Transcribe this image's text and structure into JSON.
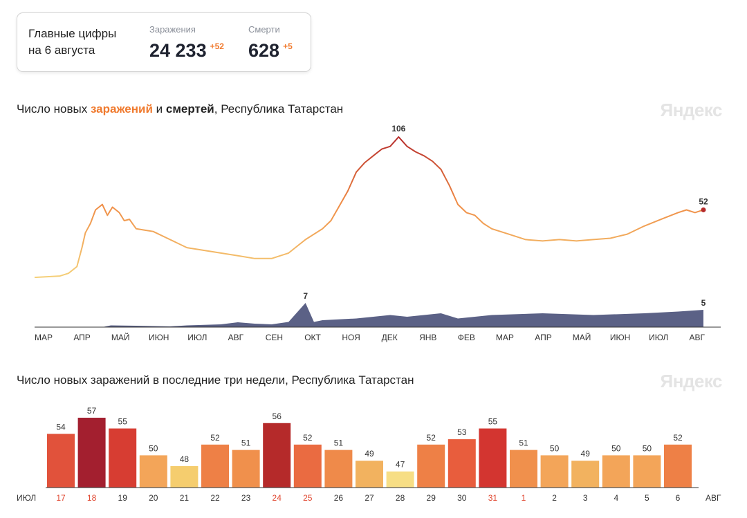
{
  "summary": {
    "title_line1": "Главные цифры",
    "title_line2": "на 6 августа",
    "infections": {
      "label": "Заражения",
      "value": "24 233",
      "delta": "+52"
    },
    "deaths": {
      "label": "Смерти",
      "value": "628",
      "delta": "+5"
    }
  },
  "brand": {
    "logo": "Яндекс"
  },
  "colors": {
    "infections_low": "#f5d27a",
    "infections_mid": "#ef8a44",
    "infections_high": "#b52a2a",
    "deaths": "#5b6186",
    "accent": "#f07a2e"
  },
  "chart_data": [
    {
      "type": "line",
      "title_parts": {
        "prefix": "Число новых ",
        "infections": "заражений",
        "middle": " и ",
        "deaths": "смертей",
        "suffix": ", Республика Татарстан"
      },
      "x_ticks": [
        "МАР",
        "АПР",
        "МАЙ",
        "ИЮН",
        "ИЮЛ",
        "АВГ",
        "СЕН",
        "ОКТ",
        "НОЯ",
        "ДЕК",
        "ЯНВ",
        "ФЕВ",
        "МАР",
        "АПР",
        "МАЙ",
        "ИЮН",
        "ИЮЛ",
        "АВГ"
      ],
      "series": [
        {
          "key": "infections",
          "points": [
            [
              0,
              2
            ],
            [
              1.5,
              3
            ],
            [
              2,
              5
            ],
            [
              2.5,
              10
            ],
            [
              2.8,
              24
            ],
            [
              3,
              35
            ],
            [
              3.3,
              42
            ],
            [
              3.6,
              52
            ],
            [
              4,
              56
            ],
            [
              4.3,
              48
            ],
            [
              4.6,
              54
            ],
            [
              5,
              50
            ],
            [
              5.3,
              44
            ],
            [
              5.6,
              45
            ],
            [
              6,
              38
            ],
            [
              6.5,
              37
            ],
            [
              7,
              36
            ],
            [
              8,
              30
            ],
            [
              9,
              24
            ],
            [
              10,
              22
            ],
            [
              11,
              20
            ],
            [
              12,
              18
            ],
            [
              13,
              16
            ],
            [
              14,
              16
            ],
            [
              15,
              20
            ],
            [
              16,
              30
            ],
            [
              17,
              38
            ],
            [
              17.5,
              44
            ],
            [
              18,
              55
            ],
            [
              18.5,
              66
            ],
            [
              19,
              80
            ],
            [
              19.5,
              87
            ],
            [
              20,
              92
            ],
            [
              20.5,
              97
            ],
            [
              21,
              99
            ],
            [
              21.5,
              106
            ],
            [
              22,
              99
            ],
            [
              22.5,
              95
            ],
            [
              23,
              92
            ],
            [
              23.5,
              88
            ],
            [
              24,
              82
            ],
            [
              24.5,
              70
            ],
            [
              25,
              56
            ],
            [
              25.5,
              50
            ],
            [
              26,
              48
            ],
            [
              26.5,
              42
            ],
            [
              27,
              38
            ],
            [
              28,
              34
            ],
            [
              29,
              30
            ],
            [
              30,
              29
            ],
            [
              31,
              30
            ],
            [
              32,
              29
            ],
            [
              33,
              30
            ],
            [
              34,
              31
            ],
            [
              35,
              34
            ],
            [
              36,
              40
            ],
            [
              37,
              45
            ],
            [
              38,
              50
            ],
            [
              38.5,
              52
            ],
            [
              39,
              50
            ],
            [
              39.5,
              52
            ]
          ],
          "labels": [
            {
              "x": 21.5,
              "value": "106"
            },
            {
              "x": 39.5,
              "value": "52"
            }
          ]
        },
        {
          "key": "deaths",
          "points": [
            [
              0,
              0
            ],
            [
              4,
              0
            ],
            [
              4.5,
              0.5
            ],
            [
              6,
              0.4
            ],
            [
              8,
              0.2
            ],
            [
              9,
              0.5
            ],
            [
              11,
              0.8
            ],
            [
              12,
              1.4
            ],
            [
              13,
              1
            ],
            [
              14,
              0.8
            ],
            [
              15,
              1.5
            ],
            [
              16,
              7
            ],
            [
              16.5,
              1.5
            ],
            [
              17,
              2
            ],
            [
              19,
              2.5
            ],
            [
              21,
              3.5
            ],
            [
              22,
              3
            ],
            [
              24,
              4
            ],
            [
              25,
              2.5
            ],
            [
              27,
              3.5
            ],
            [
              30,
              4
            ],
            [
              33,
              3.5
            ],
            [
              36,
              4
            ],
            [
              38,
              4.5
            ],
            [
              39.5,
              5
            ]
          ],
          "labels": [
            {
              "x": 16,
              "value": "7"
            },
            {
              "x": 39.5,
              "value": "5"
            }
          ]
        }
      ],
      "y_max_infections": 106,
      "y_max_deaths": 7
    },
    {
      "type": "bar",
      "title": "Число новых заражений в последние три недели, Республика Татарстан",
      "month_start": "ИЮЛ",
      "month_end": "АВГ",
      "categories": [
        "17",
        "18",
        "19",
        "20",
        "21",
        "22",
        "23",
        "24",
        "25",
        "26",
        "27",
        "28",
        "29",
        "30",
        "31",
        "1",
        "2",
        "3",
        "4",
        "5",
        "6"
      ],
      "highlighted": [
        true,
        true,
        false,
        false,
        false,
        false,
        false,
        true,
        true,
        false,
        false,
        false,
        false,
        false,
        true,
        true,
        false,
        false,
        false,
        false,
        false
      ],
      "values": [
        54,
        57,
        55,
        50,
        48,
        52,
        51,
        56,
        52,
        51,
        49,
        47,
        52,
        53,
        55,
        51,
        50,
        49,
        50,
        50,
        52
      ],
      "colors": [
        "#e1523b",
        "#a31f2f",
        "#d73d32",
        "#f3a559",
        "#f5cd6e",
        "#ee8046",
        "#f0904c",
        "#b52a2a",
        "#ea6b41",
        "#ef8a4a",
        "#f2b25f",
        "#f7de85",
        "#ee8046",
        "#e85d3d",
        "#d33530",
        "#f0904c",
        "#f3a559",
        "#f2b25f",
        "#f3a559",
        "#f3a559",
        "#ee8046"
      ]
    }
  ]
}
